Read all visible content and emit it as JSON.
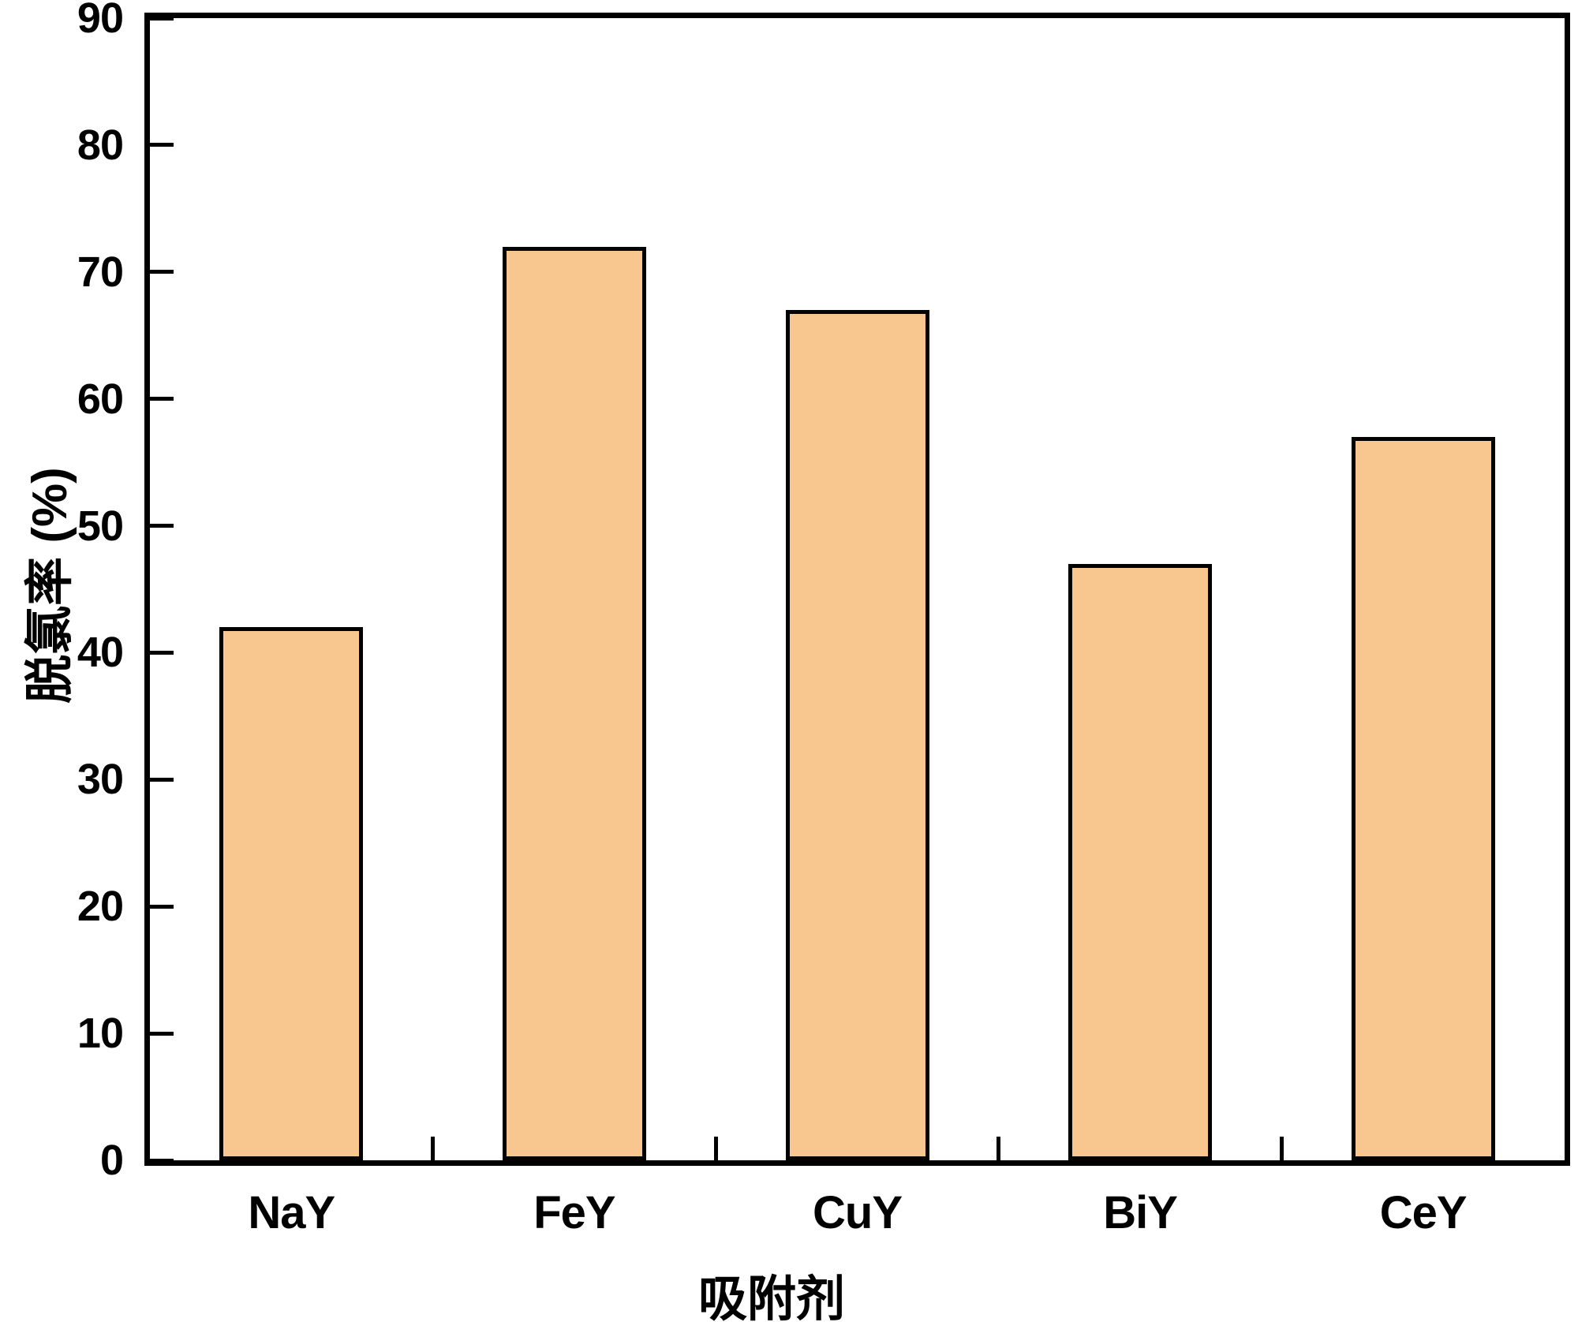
{
  "figure": {
    "background": "#FFFFFF"
  },
  "chart_data": {
    "type": "bar",
    "title": "",
    "categories": [
      "NaY",
      "FeY",
      "CuY",
      "BiY",
      "CeY"
    ],
    "values": [
      42,
      72,
      67,
      47,
      57
    ],
    "xlabel": "吸附剂",
    "ylabel": "脱氯率 (%)",
    "ylim": [
      0,
      90
    ],
    "yticks": [
      0,
      10,
      20,
      30,
      40,
      50,
      60,
      70,
      80,
      90
    ],
    "grid": false,
    "legend": null,
    "bar_color": "#F8C78F",
    "bar_border_color": "#000000",
    "axis_color": "#000000"
  }
}
